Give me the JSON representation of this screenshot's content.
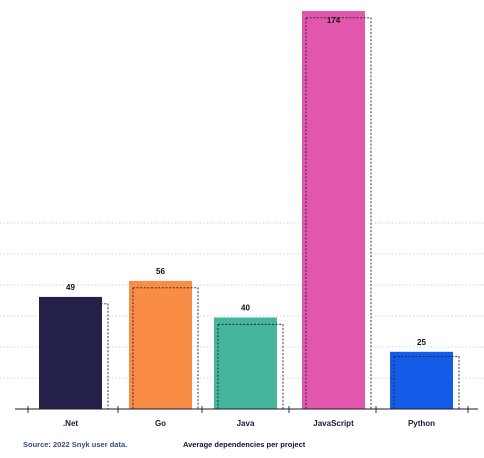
{
  "chart_data": {
    "type": "bar",
    "categories": [
      ".Net",
      "Go",
      "Java",
      "JavaScript",
      "Python"
    ],
    "values": [
      49,
      56,
      40,
      174,
      25
    ],
    "reference_values": [
      46,
      53,
      37,
      171,
      23
    ],
    "colors": [
      "#23214a",
      "#fa8d45",
      "#45b69c",
      "#e257ad",
      "#145be8"
    ],
    "xlabel": "Average dependencies per project",
    "ylabel": "",
    "ylim": [
      0,
      174
    ],
    "grid": true
  },
  "footer": {
    "source": "Source: 2022 Snyk user data.",
    "xlabel": "Average dependencies per project"
  }
}
